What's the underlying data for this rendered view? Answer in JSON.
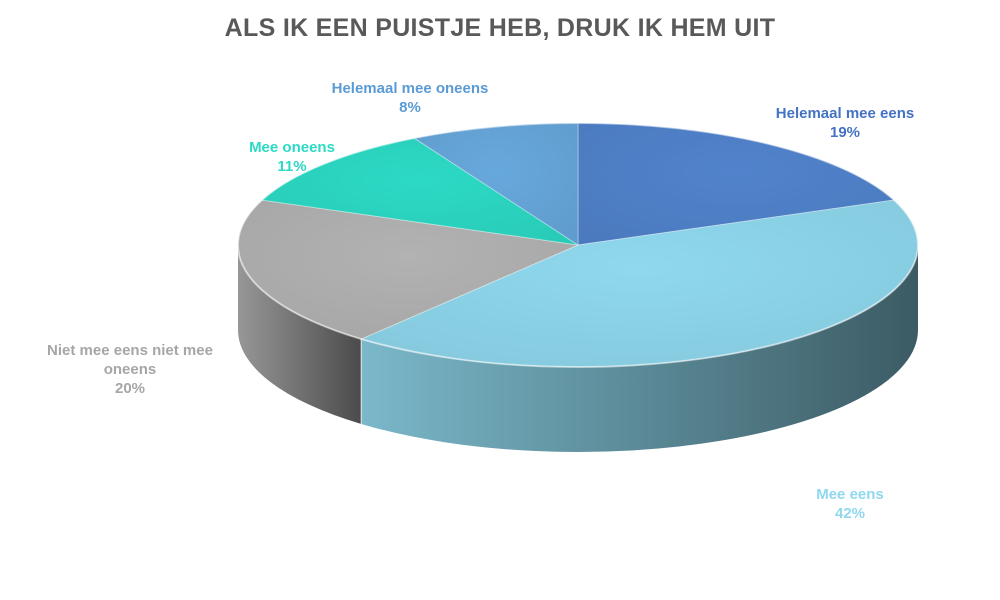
{
  "chart_data": {
    "type": "pie",
    "title": "ALS IK EEN PUISTJE HEB, DRUK IK HEM UIT",
    "style": "3d",
    "slices": [
      {
        "label": "Helemaal mee eens",
        "value": 19,
        "value_label": "19%",
        "color": "#5183cc",
        "label_color": "#4472c4"
      },
      {
        "label": "Mee eens",
        "value": 42,
        "value_label": "42%",
        "color": "#8fd8ee",
        "label_color": "#8fd8ee"
      },
      {
        "label": "Niet mee eens niet mee\noneens",
        "value": 20,
        "value_label": "20%",
        "color": "#b2b2b2",
        "label_color": "#a6a6a6"
      },
      {
        "label": "Mee oneens",
        "value": 11,
        "value_label": "11%",
        "color": "#2cdac5",
        "label_color": "#2cdac5"
      },
      {
        "label": "Helemaal  mee oneens",
        "value": 8,
        "value_label": "8%",
        "color": "#67a8dc",
        "label_color": "#5b9bd5"
      }
    ]
  }
}
